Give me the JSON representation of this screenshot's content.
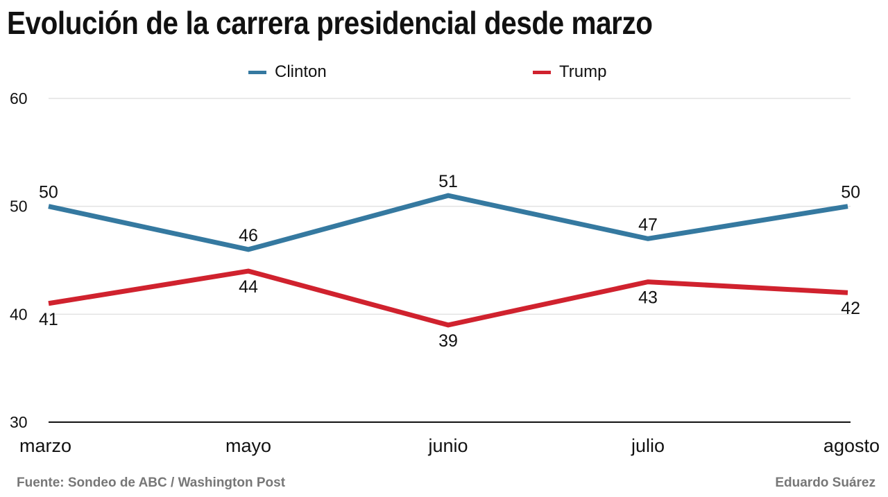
{
  "title": "Evolución de la carrera presidencial desde marzo",
  "footer": {
    "source": "Fuente: Sondeo de ABC / Washington Post",
    "author": "Eduardo Suárez"
  },
  "chart_data": {
    "type": "line",
    "title": "Evolución de la carrera presidencial desde marzo",
    "xlabel": "",
    "ylabel": "",
    "categories": [
      "marzo",
      "mayo",
      "junio",
      "julio",
      "agosto"
    ],
    "ylim": [
      30,
      60
    ],
    "yticks": [
      30,
      40,
      50,
      60
    ],
    "grid": true,
    "legend_position": "top-center",
    "series": [
      {
        "name": "Clinton",
        "color": "#3579a0",
        "values": [
          50,
          46,
          51,
          47,
          50
        ],
        "label_position": "above"
      },
      {
        "name": "Trump",
        "color": "#d0222e",
        "values": [
          41,
          44,
          39,
          43,
          42
        ],
        "label_position": "below"
      }
    ]
  }
}
